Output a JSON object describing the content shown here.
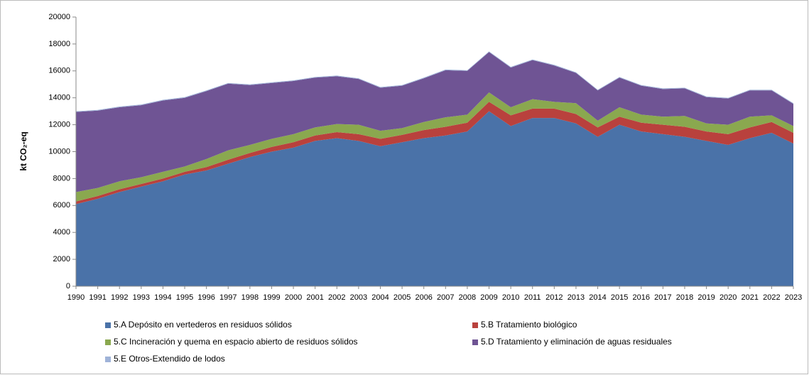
{
  "chart_data": {
    "type": "stacked_area",
    "y_label": "kt CO₂-eq",
    "categories": [
      "1990",
      "1991",
      "1992",
      "1993",
      "1994",
      "1995",
      "1996",
      "1997",
      "1998",
      "1999",
      "2000",
      "2001",
      "2002",
      "2003",
      "2004",
      "2005",
      "2006",
      "2007",
      "2008",
      "2009",
      "2010",
      "2011",
      "2012",
      "2013",
      "2014",
      "2015",
      "2016",
      "2017",
      "2018",
      "2019",
      "2020",
      "2021",
      "2022",
      "2023"
    ],
    "ylim": [
      0,
      20000
    ],
    "yticks": [
      0,
      2000,
      4000,
      6000,
      8000,
      10000,
      12000,
      14000,
      16000,
      18000,
      20000
    ],
    "grid": false,
    "legend": "bottom",
    "series": [
      {
        "name": "5.A Depósito en vertederos en residuos sólidos",
        "color": "#4a72a8",
        "values": [
          6100,
          6500,
          7000,
          7400,
          7800,
          8300,
          8600,
          9100,
          9600,
          10000,
          10300,
          10800,
          11000,
          10800,
          10400,
          10700,
          11000,
          11200,
          11500,
          13000,
          11900,
          12500,
          12500,
          12100,
          11100,
          12000,
          11500,
          11300,
          11100,
          10800,
          10500,
          11000,
          11400,
          10600
        ]
      },
      {
        "name": "5.B Tratamiento biológico",
        "color": "#b9413d",
        "values": [
          200,
          200,
          200,
          200,
          200,
          200,
          250,
          300,
          300,
          350,
          400,
          400,
          450,
          500,
          550,
          550,
          600,
          650,
          650,
          700,
          800,
          700,
          700,
          700,
          700,
          600,
          650,
          700,
          750,
          700,
          800,
          800,
          800,
          800
        ]
      },
      {
        "name": "5.C Incineración y quema en espacio abierto de residuos sólidos",
        "color": "#8aa84f",
        "values": [
          700,
          600,
          600,
          500,
          500,
          400,
          600,
          700,
          600,
          600,
          600,
          600,
          600,
          700,
          600,
          500,
          600,
          700,
          600,
          700,
          600,
          700,
          500,
          800,
          500,
          700,
          600,
          600,
          800,
          600,
          700,
          800,
          500,
          500
        ]
      },
      {
        "name": "5.D Tratamiento y eliminación de aguas residuales",
        "color": "#6f5494",
        "values": [
          5950,
          5750,
          5500,
          5350,
          5300,
          5100,
          5050,
          4950,
          4450,
          4150,
          3950,
          3700,
          3550,
          3400,
          3200,
          3150,
          3250,
          3500,
          3250,
          3000,
          2950,
          2900,
          2700,
          2250,
          2250,
          2200,
          2150,
          2050,
          2050,
          1950,
          1950,
          1950,
          1850,
          1650
        ]
      },
      {
        "name": "5.E Otros-Extendido de lodos",
        "color": "#9fb3d8",
        "values": [
          50,
          50,
          50,
          50,
          50,
          50,
          50,
          50,
          50,
          50,
          50,
          50,
          50,
          50,
          50,
          50,
          50,
          50,
          50,
          50,
          50,
          50,
          50,
          50,
          50,
          50,
          50,
          50,
          50,
          50,
          50,
          50,
          50,
          50
        ]
      }
    ]
  }
}
